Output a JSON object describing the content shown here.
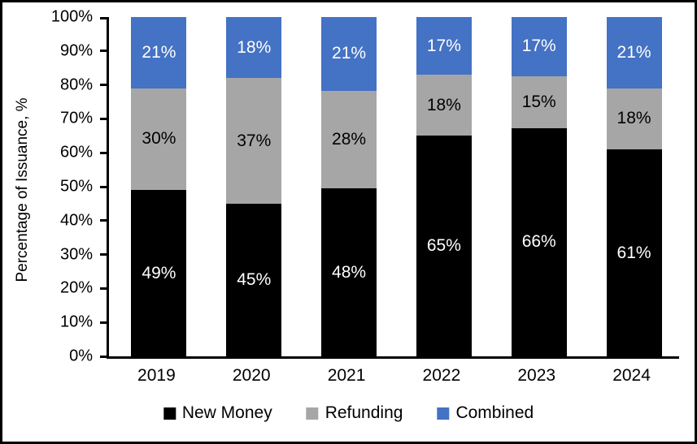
{
  "chart_data": {
    "type": "bar",
    "stacked": true,
    "orientation": "vertical",
    "title": "",
    "xlabel": "",
    "ylabel": "Percentage of Issuance, %",
    "ylim": [
      0,
      100
    ],
    "ytick_step": 10,
    "ytick_labels": [
      "0%",
      "10%",
      "20%",
      "30%",
      "40%",
      "50%",
      "60%",
      "70%",
      "80%",
      "90%",
      "100%"
    ],
    "categories": [
      "2019",
      "2020",
      "2021",
      "2022",
      "2023",
      "2024"
    ],
    "series": [
      {
        "name": "New Money",
        "color": "#000000",
        "label_color": "#ffffff",
        "values": [
          49,
          45,
          48,
          65,
          66,
          61
        ],
        "data_labels": [
          "49%",
          "45%",
          "48%",
          "65%",
          "66%",
          "61%"
        ]
      },
      {
        "name": "Refunding",
        "color": "#A6A6A6",
        "label_color": "#000000",
        "values": [
          30,
          37,
          28,
          18,
          15,
          18
        ],
        "data_labels": [
          "30%",
          "37%",
          "28%",
          "18%",
          "15%",
          "18%"
        ]
      },
      {
        "name": "Combined",
        "color": "#4472C4",
        "label_color": "#ffffff",
        "values": [
          21,
          18,
          21,
          17,
          17,
          21
        ],
        "data_labels": [
          "21%",
          "18%",
          "21%",
          "17%",
          "17%",
          "21%"
        ]
      }
    ],
    "legend_position": "bottom",
    "grid": false
  }
}
